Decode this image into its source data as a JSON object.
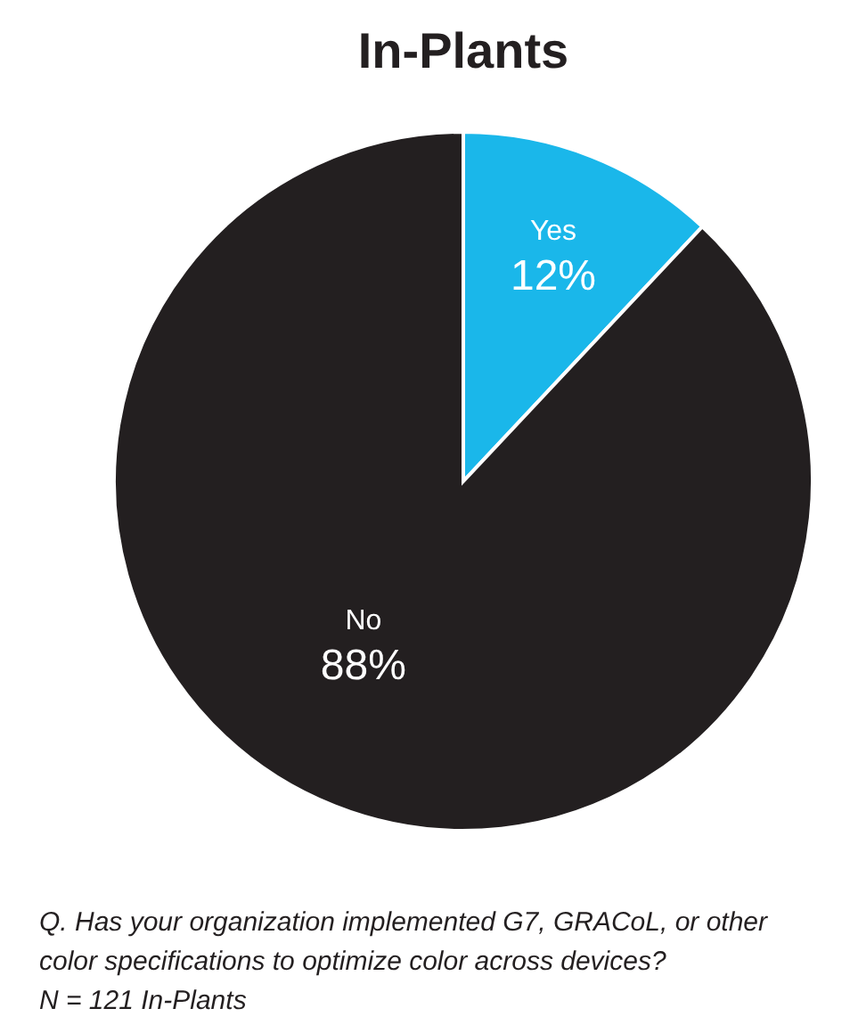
{
  "chart_data": {
    "type": "pie",
    "title": "In-Plants",
    "categories": [
      "Yes",
      "No"
    ],
    "values": [
      12,
      88
    ],
    "colors": [
      "#1ab7ea",
      "#231f20"
    ],
    "value_labels": [
      "12%",
      "88%"
    ],
    "annotations": [
      "Q. Has your organization implemented G7, GRACoL, or other color specifications to optimize color across devices?",
      "N = 121 In-Plants"
    ]
  }
}
